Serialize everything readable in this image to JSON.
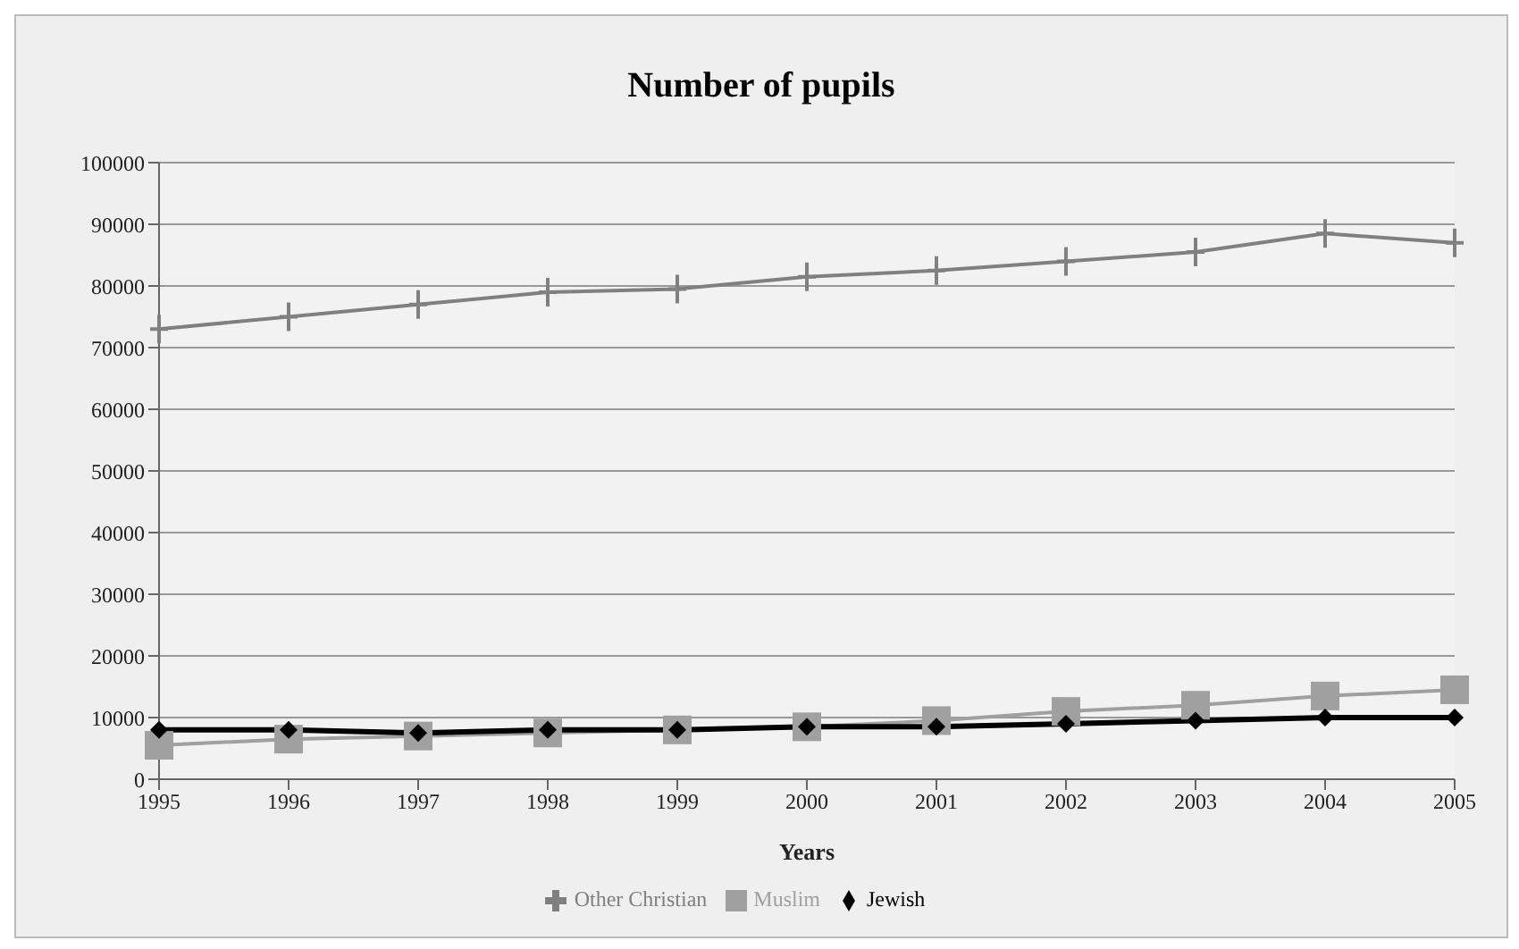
{
  "chart_data": {
    "type": "line",
    "title": "Number of pupils",
    "xlabel": "Years",
    "categories": [
      "1995",
      "1996",
      "1997",
      "1998",
      "1999",
      "2000",
      "2001",
      "2002",
      "2003",
      "2004",
      "2005"
    ],
    "series": [
      {
        "name": "Other Christian",
        "color": "#808080",
        "marker": "cross",
        "values": [
          73000,
          75000,
          77000,
          79000,
          79500,
          81500,
          82500,
          84000,
          85500,
          88500,
          87000
        ]
      },
      {
        "name": "Muslim",
        "color": "#a0a0a0",
        "marker": "square",
        "values": [
          5500,
          6500,
          7000,
          7500,
          8000,
          8500,
          9500,
          11000,
          12000,
          13500,
          14500
        ]
      },
      {
        "name": "Jewish",
        "color": "#000000",
        "marker": "diamond",
        "values": [
          8000,
          8000,
          7500,
          8000,
          8000,
          8500,
          8500,
          9000,
          9500,
          10000,
          10000
        ]
      }
    ],
    "ylim": [
      0,
      100000
    ],
    "yticks": [
      0,
      10000,
      20000,
      30000,
      40000,
      50000,
      60000,
      70000,
      80000,
      90000,
      100000
    ],
    "grid": "y",
    "legend": "bottom"
  }
}
